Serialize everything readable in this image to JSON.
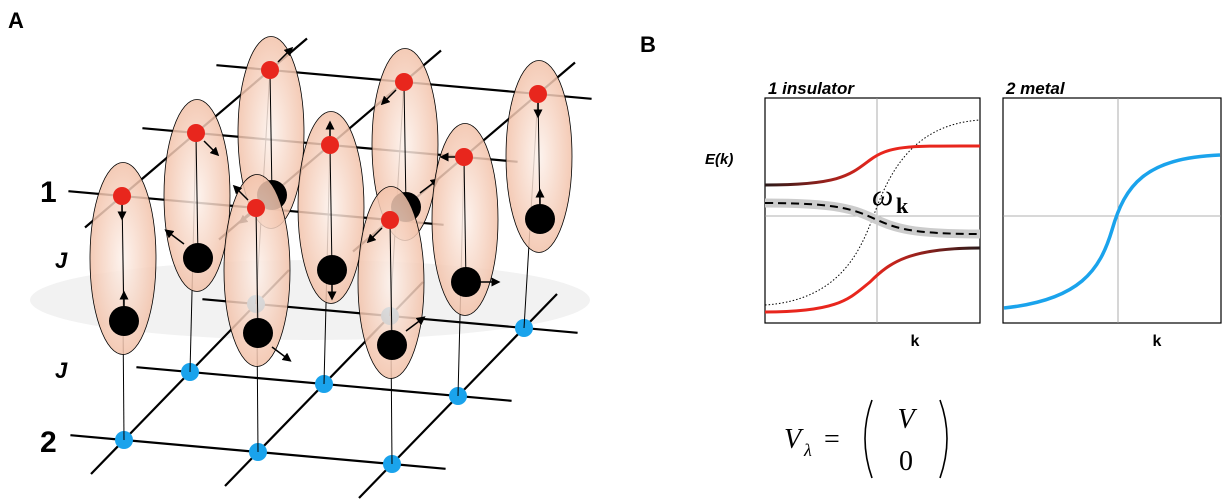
{
  "panel_a": {
    "label": "A",
    "layer_labels": [
      "1",
      "2"
    ],
    "coupling_labels": [
      "J",
      "J"
    ]
  },
  "panel_b": {
    "label": "B",
    "plots": [
      {
        "title": "1 insulator",
        "y_label": "E(k)",
        "x_label": "k",
        "curve_label": "ω",
        "curve_label_subscript": "k"
      },
      {
        "title": "2 metal",
        "x_label": "k"
      }
    ],
    "equation": {
      "lhs": "V",
      "lhs_subscript": "λ",
      "relation": "=",
      "vector": [
        "V",
        "0"
      ]
    }
  }
}
